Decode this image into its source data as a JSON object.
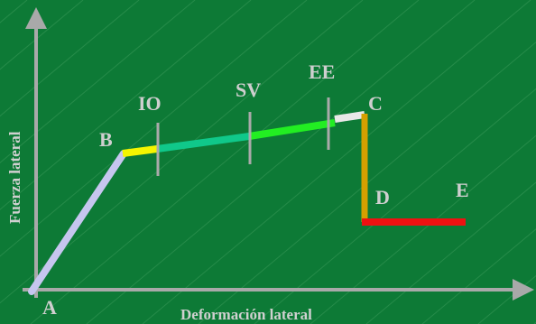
{
  "colors": {
    "background": "#0d7a36",
    "texture_line": "#3b9a5a",
    "axis": "#a9a9a9",
    "label": "#cfcfcf",
    "segment_AB": "#c6c6ef",
    "segment_B_IO": "#f5f500",
    "segment_IO_SV": "#10c88a",
    "segment_SV_EE": "#22ee22",
    "segment_EE_C": "#e8e8e8",
    "segment_CD": "#d4a000",
    "segment_DE": "#ee1111",
    "marker": "#aaaaaa"
  },
  "axes": {
    "x_label": "Deformación lateral",
    "y_label": "Fuerza lateral"
  },
  "points": {
    "A": "A",
    "B": "B",
    "C": "C",
    "D": "D",
    "E": "E"
  },
  "levels": {
    "IO": "IO",
    "SV": "SV",
    "EE": "EE"
  }
}
